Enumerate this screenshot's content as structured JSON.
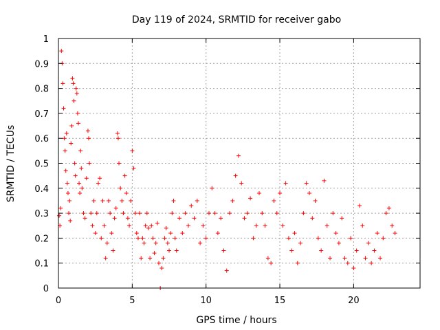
{
  "chart_data": {
    "type": "scatter",
    "title": "Day 119 of 2024, SRMTID for receiver gabo",
    "xlabel": "GPS time / hours",
    "ylabel": "SRMTID / TECUs",
    "xlim": [
      0,
      24.5
    ],
    "ylim": [
      0,
      1
    ],
    "x_ticks": [
      0,
      5,
      10,
      15,
      20
    ],
    "x_tick_labels": [
      "0",
      "5",
      "10",
      "15",
      "20"
    ],
    "y_ticks": [
      0,
      0.1,
      0.2,
      0.3,
      0.4,
      0.5,
      0.6,
      0.7,
      0.8,
      0.9,
      1
    ],
    "y_tick_labels": [
      "0",
      "0.1",
      "0.2",
      "0.3",
      "0.4",
      "0.5",
      "0.6",
      "0.7",
      "0.8",
      "0.9",
      "1"
    ],
    "grid": true,
    "marker": "plus",
    "color": "#ff0000",
    "series": [
      {
        "name": "SRMTID",
        "points": [
          [
            0.05,
            0.29
          ],
          [
            0.1,
            0.25
          ],
          [
            0.15,
            0.32
          ],
          [
            0.2,
            0.95
          ],
          [
            0.25,
            0.9
          ],
          [
            0.3,
            0.82
          ],
          [
            0.35,
            0.72
          ],
          [
            0.4,
            0.6
          ],
          [
            0.45,
            0.55
          ],
          [
            0.5,
            0.47
          ],
          [
            0.55,
            0.62
          ],
          [
            0.6,
            0.42
          ],
          [
            0.65,
            0.38
          ],
          [
            0.7,
            0.3
          ],
          [
            0.75,
            0.35
          ],
          [
            0.8,
            0.27
          ],
          [
            0.85,
            0.58
          ],
          [
            0.9,
            0.65
          ],
          [
            0.95,
            0.84
          ],
          [
            1.0,
            0.82
          ],
          [
            1.05,
            0.75
          ],
          [
            1.1,
            0.5
          ],
          [
            1.15,
            0.45
          ],
          [
            1.2,
            0.8
          ],
          [
            1.25,
            0.78
          ],
          [
            1.3,
            0.7
          ],
          [
            1.35,
            0.66
          ],
          [
            1.4,
            0.42
          ],
          [
            1.45,
            0.38
          ],
          [
            1.5,
            0.55
          ],
          [
            1.55,
            0.48
          ],
          [
            1.6,
            0.4
          ],
          [
            1.7,
            0.3
          ],
          [
            1.8,
            0.28
          ],
          [
            1.9,
            0.44
          ],
          [
            2.0,
            0.63
          ],
          [
            2.05,
            0.6
          ],
          [
            2.1,
            0.5
          ],
          [
            2.2,
            0.3
          ],
          [
            2.3,
            0.25
          ],
          [
            2.4,
            0.35
          ],
          [
            2.5,
            0.22
          ],
          [
            2.6,
            0.3
          ],
          [
            2.7,
            0.42
          ],
          [
            2.8,
            0.44
          ],
          [
            2.9,
            0.2
          ],
          [
            3.0,
            0.35
          ],
          [
            3.1,
            0.25
          ],
          [
            3.2,
            0.12
          ],
          [
            3.3,
            0.18
          ],
          [
            3.4,
            0.35
          ],
          [
            3.5,
            0.3
          ],
          [
            3.6,
            0.22
          ],
          [
            3.7,
            0.15
          ],
          [
            3.8,
            0.28
          ],
          [
            3.9,
            0.32
          ],
          [
            4.0,
            0.62
          ],
          [
            4.05,
            0.6
          ],
          [
            4.1,
            0.5
          ],
          [
            4.2,
            0.4
          ],
          [
            4.3,
            0.35
          ],
          [
            4.4,
            0.3
          ],
          [
            4.5,
            0.45
          ],
          [
            4.6,
            0.38
          ],
          [
            4.7,
            0.28
          ],
          [
            4.8,
            0.25
          ],
          [
            4.9,
            0.35
          ],
          [
            5.0,
            0.55
          ],
          [
            5.1,
            0.48
          ],
          [
            5.2,
            0.3
          ],
          [
            5.3,
            0.22
          ],
          [
            5.4,
            0.2
          ],
          [
            5.5,
            0.3
          ],
          [
            5.6,
            0.12
          ],
          [
            5.7,
            0.2
          ],
          [
            5.8,
            0.18
          ],
          [
            5.9,
            0.25
          ],
          [
            6.0,
            0.3
          ],
          [
            6.1,
            0.24
          ],
          [
            6.2,
            0.12
          ],
          [
            6.3,
            0.25
          ],
          [
            6.4,
            0.2
          ],
          [
            6.5,
            0.14
          ],
          [
            6.6,
            0.18
          ],
          [
            6.7,
            0.26
          ],
          [
            6.8,
            0.1
          ],
          [
            6.9,
            0.0
          ],
          [
            7.0,
            0.08
          ],
          [
            7.1,
            0.12
          ],
          [
            7.2,
            0.2
          ],
          [
            7.3,
            0.24
          ],
          [
            7.4,
            0.18
          ],
          [
            7.5,
            0.15
          ],
          [
            7.6,
            0.22
          ],
          [
            7.7,
            0.3
          ],
          [
            7.8,
            0.35
          ],
          [
            7.9,
            0.2
          ],
          [
            8.0,
            0.15
          ],
          [
            8.2,
            0.28
          ],
          [
            8.4,
            0.22
          ],
          [
            8.6,
            0.3
          ],
          [
            8.8,
            0.25
          ],
          [
            9.0,
            0.33
          ],
          [
            9.2,
            0.28
          ],
          [
            9.4,
            0.35
          ],
          [
            9.6,
            0.18
          ],
          [
            9.8,
            0.25
          ],
          [
            10.0,
            0.2
          ],
          [
            10.2,
            0.3
          ],
          [
            10.4,
            0.4
          ],
          [
            10.6,
            0.3
          ],
          [
            10.8,
            0.22
          ],
          [
            11.0,
            0.28
          ],
          [
            11.2,
            0.15
          ],
          [
            11.4,
            0.07
          ],
          [
            11.6,
            0.3
          ],
          [
            11.8,
            0.35
          ],
          [
            12.0,
            0.45
          ],
          [
            12.2,
            0.53
          ],
          [
            12.4,
            0.42
          ],
          [
            12.6,
            0.28
          ],
          [
            12.8,
            0.3
          ],
          [
            13.0,
            0.36
          ],
          [
            13.2,
            0.2
          ],
          [
            13.4,
            0.25
          ],
          [
            13.6,
            0.38
          ],
          [
            13.8,
            0.3
          ],
          [
            14.0,
            0.25
          ],
          [
            14.2,
            0.12
          ],
          [
            14.4,
            0.1
          ],
          [
            14.6,
            0.35
          ],
          [
            14.8,
            0.3
          ],
          [
            15.0,
            0.38
          ],
          [
            15.2,
            0.25
          ],
          [
            15.4,
            0.42
          ],
          [
            15.6,
            0.2
          ],
          [
            15.8,
            0.15
          ],
          [
            16.0,
            0.22
          ],
          [
            16.2,
            0.1
          ],
          [
            16.4,
            0.18
          ],
          [
            16.6,
            0.3
          ],
          [
            16.8,
            0.42
          ],
          [
            17.0,
            0.38
          ],
          [
            17.2,
            0.28
          ],
          [
            17.4,
            0.35
          ],
          [
            17.6,
            0.2
          ],
          [
            17.8,
            0.15
          ],
          [
            18.0,
            0.43
          ],
          [
            18.2,
            0.25
          ],
          [
            18.4,
            0.12
          ],
          [
            18.6,
            0.3
          ],
          [
            18.8,
            0.22
          ],
          [
            19.0,
            0.18
          ],
          [
            19.2,
            0.28
          ],
          [
            19.4,
            0.12
          ],
          [
            19.6,
            0.1
          ],
          [
            19.8,
            0.2
          ],
          [
            20.0,
            0.08
          ],
          [
            20.2,
            0.15
          ],
          [
            20.4,
            0.33
          ],
          [
            20.6,
            0.25
          ],
          [
            20.8,
            0.12
          ],
          [
            21.0,
            0.18
          ],
          [
            21.2,
            0.1
          ],
          [
            21.4,
            0.15
          ],
          [
            21.6,
            0.22
          ],
          [
            21.8,
            0.12
          ],
          [
            22.0,
            0.2
          ],
          [
            22.2,
            0.3
          ],
          [
            22.4,
            0.32
          ],
          [
            22.6,
            0.25
          ],
          [
            22.8,
            0.22
          ]
        ]
      }
    ]
  }
}
